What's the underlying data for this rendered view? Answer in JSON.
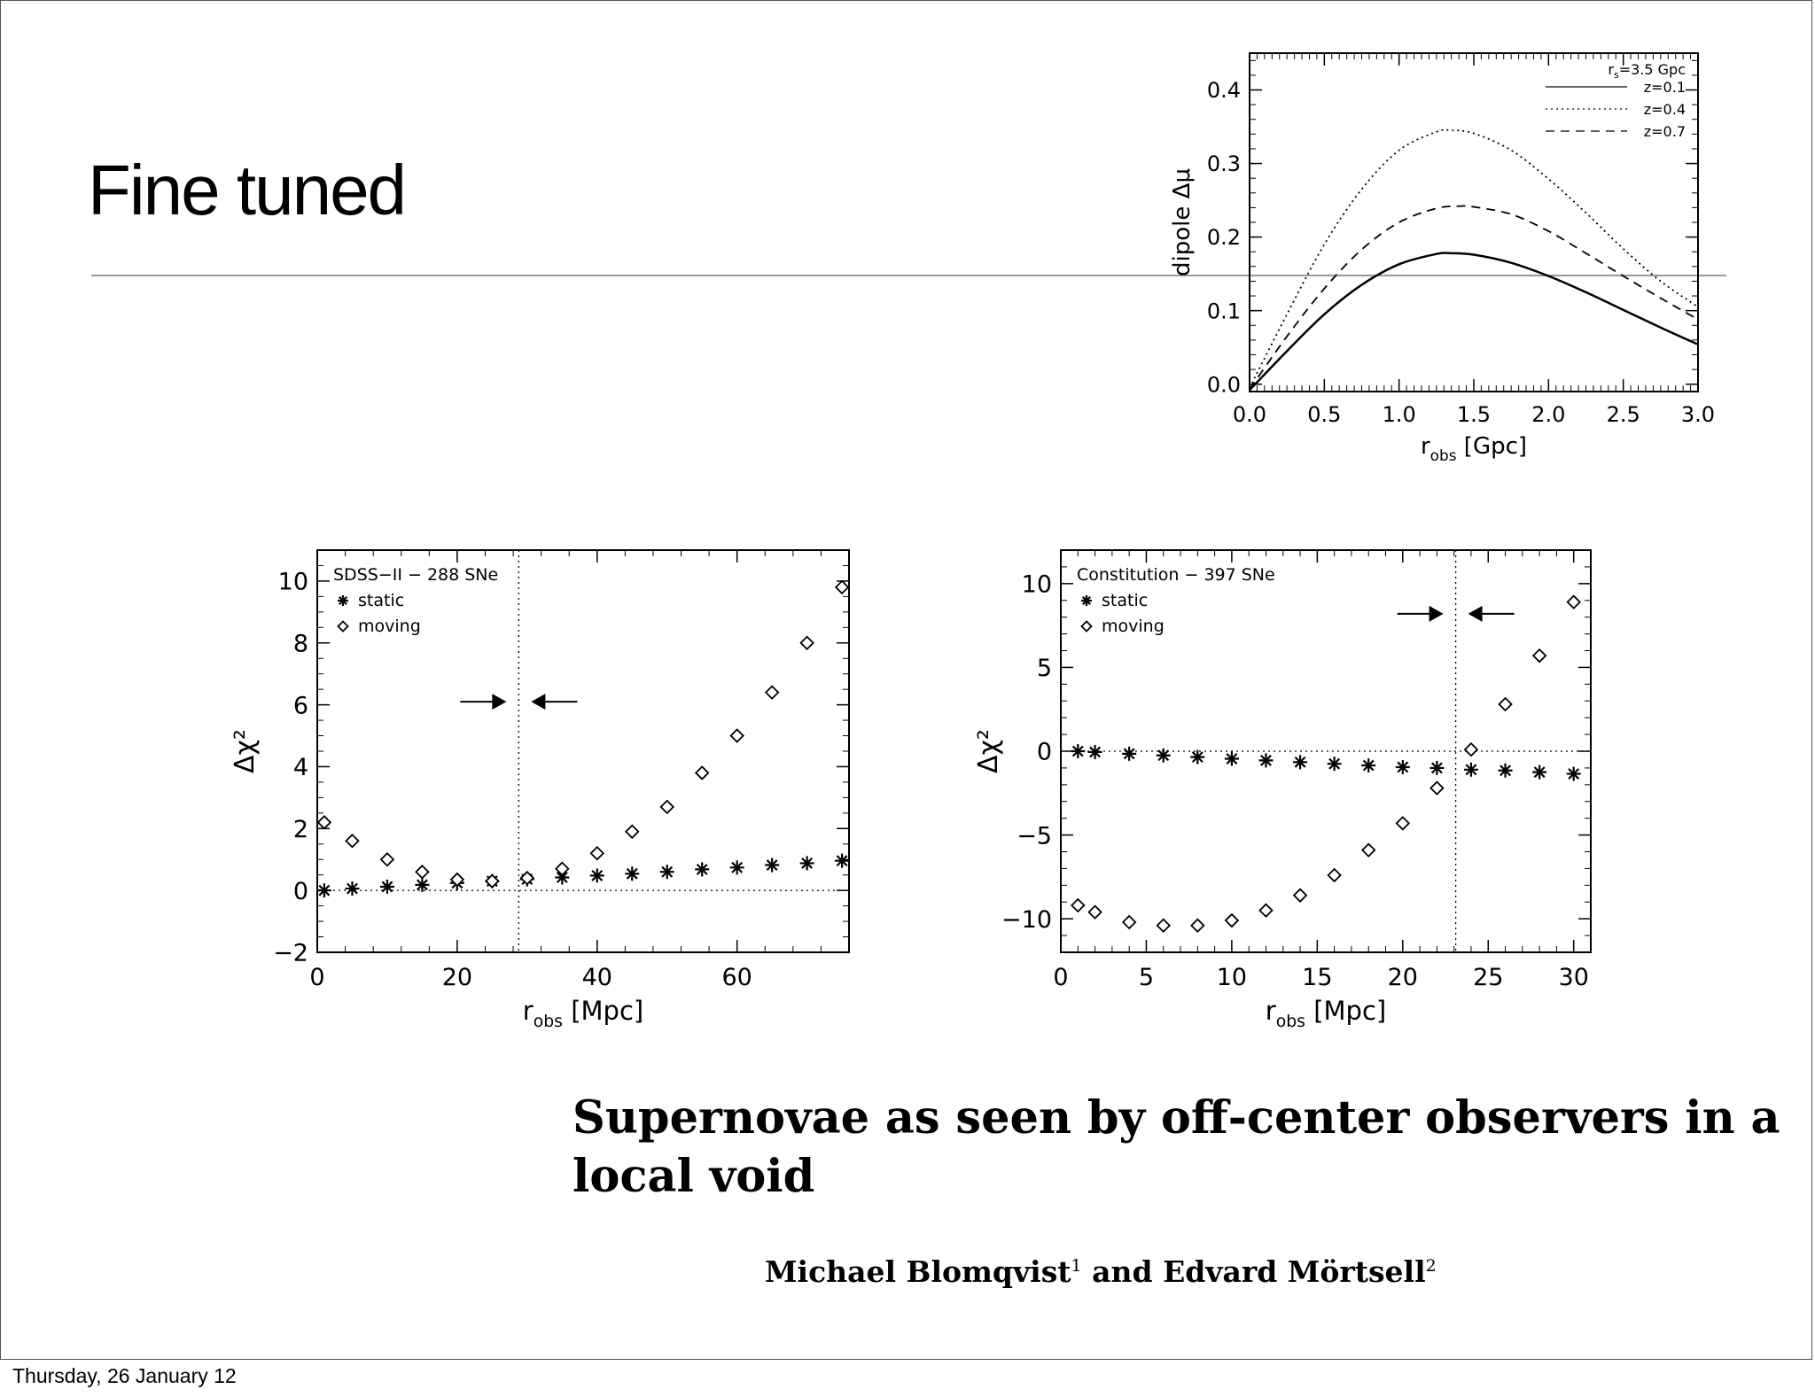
{
  "slide": {
    "title": "Fine tuned",
    "footer_date": "Thursday, 26 January 12",
    "paper_title": "Supernovae as seen by off-center observers in a local void",
    "authors": {
      "name1": "Michael Blomqvist",
      "sup1": "1",
      "and": " and ",
      "name2": "Edvard Mörtsell",
      "sup2": "2"
    }
  },
  "chart_data": [
    {
      "id": "dipole",
      "type": "line",
      "ylabel": "dipole Δμ",
      "xlabel_main": "r",
      "xlabel_sub": "obs",
      "xlabel_unit": "[Gpc]",
      "xlim": [
        0,
        3.0
      ],
      "ylim": [
        -0.01,
        0.45
      ],
      "xticks": [
        0.0,
        0.5,
        1.0,
        1.5,
        2.0,
        2.5,
        3.0
      ],
      "xtick_labels": [
        "0.0",
        "0.5",
        "1.0",
        "1.5",
        "2.0",
        "2.5",
        "3.0"
      ],
      "yticks": [
        0.0,
        0.1,
        0.2,
        0.3,
        0.4
      ],
      "ytick_labels": [
        "0.0",
        "0.1",
        "0.2",
        "0.3",
        "0.4"
      ],
      "legend_header": "r_s=3.5 Gpc",
      "legend_header_main": "r",
      "legend_header_sub": "s",
      "legend_header_rest": "=3.5 Gpc",
      "legend_position": "top-right",
      "series": [
        {
          "name": "z=0.1",
          "style": "solid",
          "peak_x": 1.35,
          "peak_y": 0.178,
          "x": [
            0,
            0.25,
            0.5,
            0.75,
            1.0,
            1.25,
            1.35,
            1.5,
            1.75,
            2.0,
            2.25,
            2.5,
            2.75,
            3.0
          ],
          "y": [
            -0.008,
            0.045,
            0.095,
            0.135,
            0.163,
            0.177,
            0.178,
            0.176,
            0.165,
            0.147,
            0.125,
            0.101,
            0.077,
            0.054
          ]
        },
        {
          "name": "z=0.4",
          "style": "dotted",
          "peak_x": 1.35,
          "peak_y": 0.345,
          "x": [
            0,
            0.25,
            0.5,
            0.75,
            1.0,
            1.25,
            1.35,
            1.5,
            1.75,
            2.0,
            2.25,
            2.5,
            2.75,
            3.0
          ],
          "y": [
            -0.005,
            0.095,
            0.19,
            0.265,
            0.318,
            0.343,
            0.345,
            0.341,
            0.318,
            0.279,
            0.233,
            0.184,
            0.14,
            0.105
          ]
        },
        {
          "name": "z=0.7",
          "style": "dashed",
          "peak_x": 1.4,
          "peak_y": 0.242,
          "x": [
            0,
            0.25,
            0.5,
            0.75,
            1.0,
            1.25,
            1.4,
            1.5,
            1.75,
            2.0,
            2.25,
            2.5,
            2.75,
            3.0
          ],
          "y": [
            -0.007,
            0.065,
            0.13,
            0.183,
            0.22,
            0.239,
            0.242,
            0.241,
            0.231,
            0.208,
            0.178,
            0.147,
            0.117,
            0.088
          ]
        }
      ]
    },
    {
      "id": "sdss",
      "type": "scatter",
      "ylabel": "Δχ²",
      "xlabel_main": "r",
      "xlabel_sub": "obs",
      "xlabel_unit": "[Mpc]",
      "xlim": [
        0,
        76
      ],
      "ylim": [
        -2.0,
        11.0
      ],
      "xticks": [
        0,
        20,
        40,
        60
      ],
      "xtick_labels": [
        "0",
        "20",
        "40",
        "60"
      ],
      "yticks": [
        -2,
        0,
        2,
        4,
        6,
        8,
        10
      ],
      "ytick_labels": [
        "−2",
        "0",
        "2",
        "4",
        "6",
        "8",
        "10"
      ],
      "legend_title": "SDSS−II − 288 SNe",
      "legend_position": "top-left",
      "zero_line": 0,
      "vline": 28.8,
      "arrow_y": 6.1,
      "series": [
        {
          "name": "static",
          "marker": "asterisk",
          "x": [
            1,
            5,
            10,
            15,
            20,
            25,
            30,
            35,
            40,
            45,
            50,
            55,
            60,
            65,
            70,
            75
          ],
          "y": [
            0.0,
            0.06,
            0.12,
            0.18,
            0.24,
            0.3,
            0.36,
            0.42,
            0.48,
            0.54,
            0.6,
            0.68,
            0.74,
            0.82,
            0.88,
            0.96
          ]
        },
        {
          "name": "moving",
          "marker": "diamond",
          "x": [
            1,
            5,
            10,
            15,
            20,
            25,
            30,
            35,
            40,
            45,
            50,
            55,
            60,
            65,
            70,
            75
          ],
          "y": [
            2.2,
            1.6,
            1.0,
            0.6,
            0.35,
            0.3,
            0.4,
            0.7,
            1.2,
            1.9,
            2.7,
            3.8,
            5.0,
            6.4,
            8.0,
            9.8
          ]
        }
      ]
    },
    {
      "id": "constitution",
      "type": "scatter",
      "ylabel": "Δχ²",
      "xlabel_main": "r",
      "xlabel_sub": "obs",
      "xlabel_unit": "[Mpc]",
      "xlim": [
        0,
        31
      ],
      "ylim": [
        -12,
        12
      ],
      "xticks": [
        0,
        5,
        10,
        15,
        20,
        25,
        30
      ],
      "xtick_labels": [
        "0",
        "5",
        "10",
        "15",
        "20",
        "25",
        "30"
      ],
      "yticks": [
        -10,
        -5,
        0,
        5,
        10
      ],
      "ytick_labels": [
        "−10",
        "−5",
        "0",
        "5",
        "10"
      ],
      "legend_title": "Constitution − 397 SNe",
      "legend_position": "top-left",
      "zero_line": 0,
      "vline": 23.1,
      "arrow_y": 8.2,
      "series": [
        {
          "name": "static",
          "marker": "asterisk",
          "x": [
            1,
            2,
            4,
            6,
            8,
            10,
            12,
            14,
            16,
            18,
            20,
            22,
            24,
            26,
            28,
            30
          ],
          "y": [
            0.0,
            -0.05,
            -0.15,
            -0.25,
            -0.35,
            -0.45,
            -0.55,
            -0.65,
            -0.75,
            -0.85,
            -0.95,
            -1.0,
            -1.1,
            -1.15,
            -1.25,
            -1.35
          ]
        },
        {
          "name": "moving",
          "marker": "diamond",
          "x": [
            1,
            2,
            4,
            6,
            8,
            10,
            12,
            14,
            16,
            18,
            20,
            22,
            24,
            26,
            28,
            30
          ],
          "y": [
            -9.2,
            -9.6,
            -10.2,
            -10.4,
            -10.4,
            -10.1,
            -9.5,
            -8.6,
            -7.4,
            -5.9,
            -4.3,
            -2.2,
            0.1,
            2.8,
            5.7,
            8.9
          ]
        }
      ]
    }
  ]
}
